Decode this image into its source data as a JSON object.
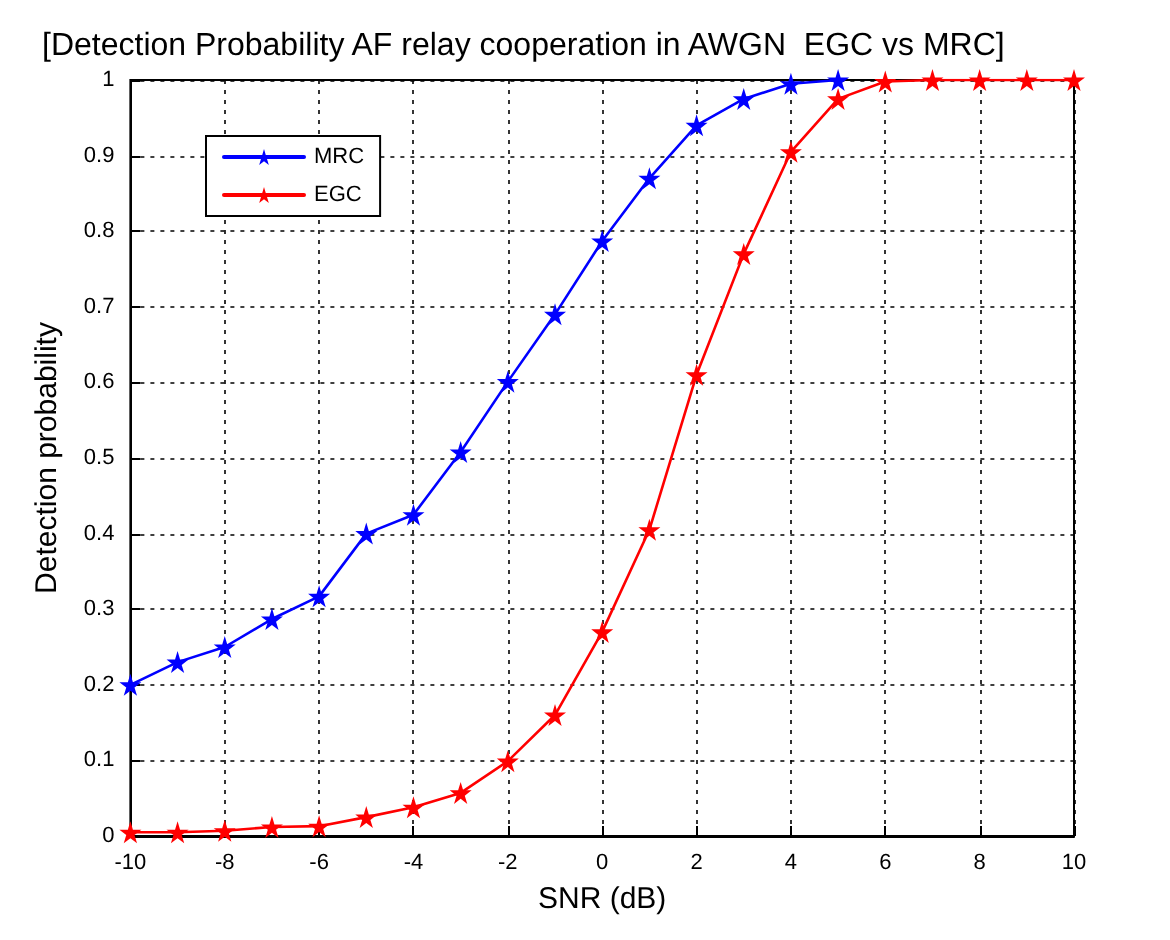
{
  "chart_data": {
    "type": "line",
    "title": "[Detection Probability AF relay cooperation in AWGN  EGC vs MRC]",
    "xlabel": "SNR (dB)",
    "ylabel": "Detection probability",
    "x": [
      -10,
      -9,
      -8,
      -7,
      -6,
      -5,
      -4,
      -3,
      -2,
      -1,
      0,
      1,
      2,
      3,
      4,
      5,
      6,
      7,
      8,
      9,
      10
    ],
    "series": [
      {
        "name": "MRC",
        "color": "#0000ff",
        "values": [
          0.2,
          0.23,
          0.25,
          0.287,
          0.317,
          0.4,
          0.425,
          0.508,
          0.601,
          0.69,
          0.787,
          0.87,
          0.94,
          0.975,
          0.995,
          1.0,
          null,
          null,
          null,
          null,
          null
        ]
      },
      {
        "name": "EGC",
        "color": "#ff0000",
        "values": [
          0.005,
          0.005,
          0.007,
          0.012,
          0.013,
          0.025,
          0.038,
          0.057,
          0.099,
          0.16,
          0.27,
          0.405,
          0.61,
          0.77,
          0.905,
          0.975,
          0.998,
          1.0,
          1.0,
          1.0,
          1.0
        ]
      }
    ],
    "xlim": [
      -10,
      10
    ],
    "xticks": [
      -10,
      -8,
      -6,
      -4,
      -2,
      0,
      2,
      4,
      6,
      8,
      10
    ],
    "ylim": [
      0,
      1
    ],
    "yticks": [
      0,
      0.1,
      0.2,
      0.3,
      0.4,
      0.5,
      0.6,
      0.7,
      0.8,
      0.9,
      1
    ],
    "grid": true,
    "legend": "top left",
    "marker": "star",
    "line_style": "solid"
  }
}
